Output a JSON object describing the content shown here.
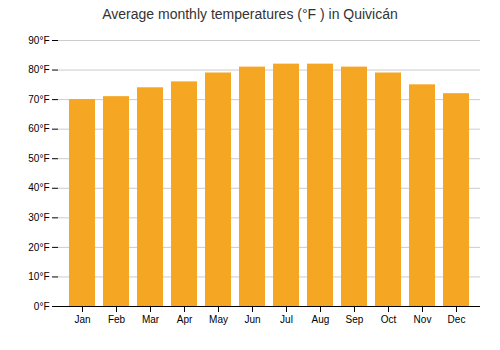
{
  "chart_data": {
    "type": "bar",
    "title": "Average monthly temperatures (°F ) in Quivicán",
    "categories": [
      "Jan",
      "Feb",
      "Mar",
      "Apr",
      "May",
      "Jun",
      "Jul",
      "Aug",
      "Sep",
      "Oct",
      "Nov",
      "Dec"
    ],
    "values": [
      70,
      71,
      74,
      76,
      79,
      81,
      82,
      82,
      81,
      79,
      75,
      72
    ],
    "color": "#F5A623",
    "ylim": [
      0,
      90
    ],
    "yticks": [
      {
        "value": 0,
        "label": "0°F"
      },
      {
        "value": 10,
        "label": "10°F"
      },
      {
        "value": 20,
        "label": "20°F"
      },
      {
        "value": 30,
        "label": "30°F"
      },
      {
        "value": 40,
        "label": "40°F"
      },
      {
        "value": 50,
        "label": "50°F"
      },
      {
        "value": 60,
        "label": "60°F"
      },
      {
        "value": 70,
        "label": "70°F"
      },
      {
        "value": 80,
        "label": "80°F"
      },
      {
        "value": 90,
        "label": "90°F"
      }
    ],
    "grid": true
  }
}
